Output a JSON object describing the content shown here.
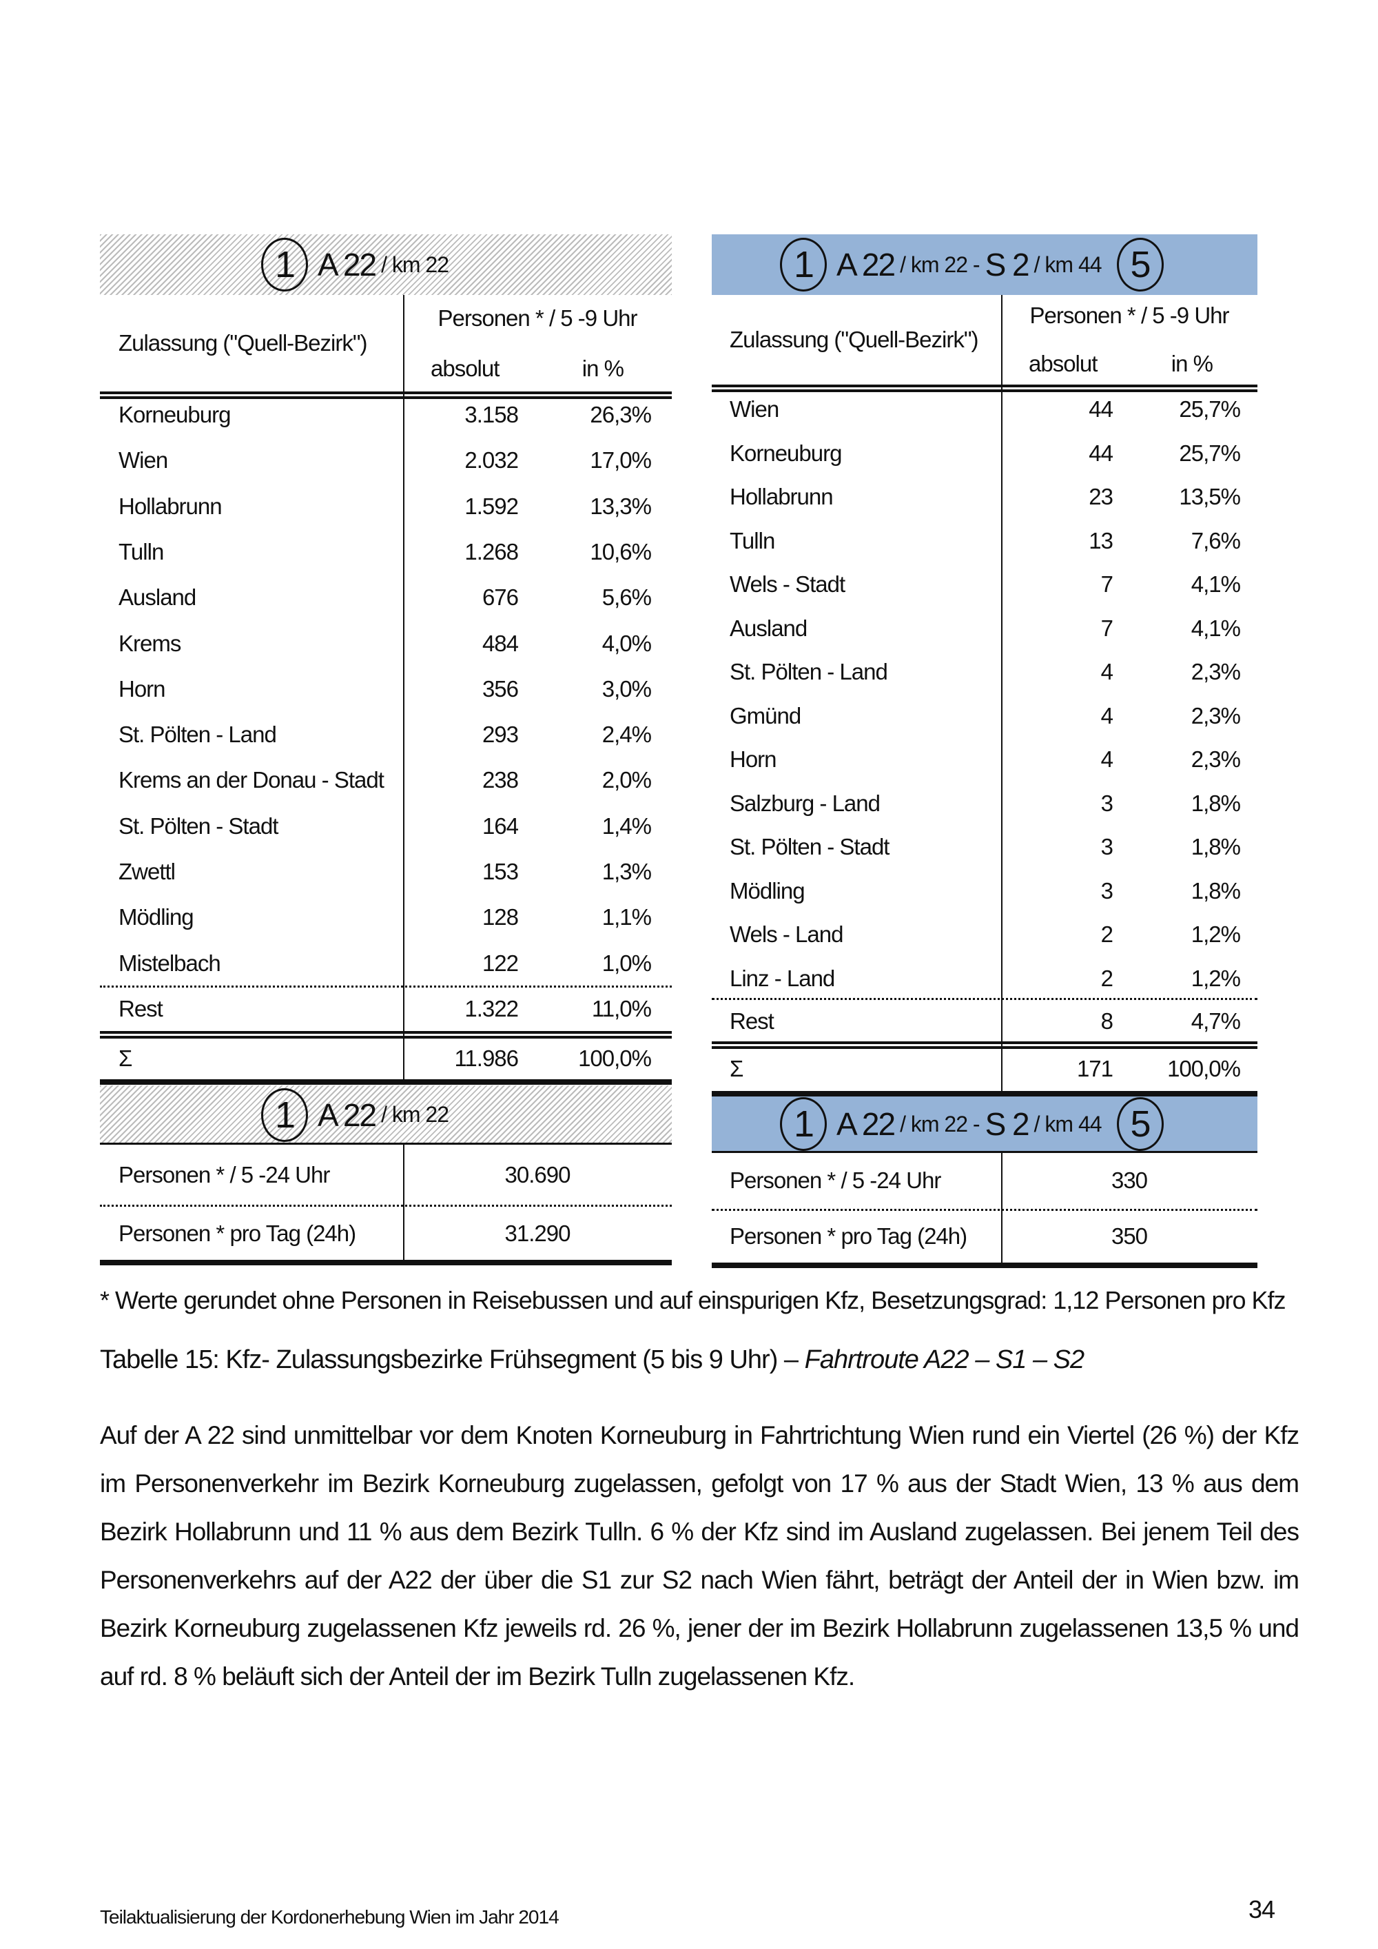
{
  "left_table": {
    "header": {
      "circle_start": "1",
      "road": "A 22",
      "km": "/ km 22"
    },
    "col_zulassung": "Zulassung (\"Quell-Bezirk\")",
    "col_personen": "Personen * / 5 -9 Uhr",
    "col_absolut": "absolut",
    "col_percent": "in %",
    "rows": [
      {
        "name": "Korneuburg",
        "abs": "3.158",
        "pct": "26,3%"
      },
      {
        "name": "Wien",
        "abs": "2.032",
        "pct": "17,0%"
      },
      {
        "name": "Hollabrunn",
        "abs": "1.592",
        "pct": "13,3%"
      },
      {
        "name": "Tulln",
        "abs": "1.268",
        "pct": "10,6%"
      },
      {
        "name": "Ausland",
        "abs": "676",
        "pct": "5,6%"
      },
      {
        "name": "Krems",
        "abs": "484",
        "pct": "4,0%"
      },
      {
        "name": "Horn",
        "abs": "356",
        "pct": "3,0%"
      },
      {
        "name": "St. Pölten - Land",
        "abs": "293",
        "pct": "2,4%"
      },
      {
        "name": "Krems an der Donau - Stadt",
        "abs": "238",
        "pct": "2,0%"
      },
      {
        "name": "St. Pölten - Stadt",
        "abs": "164",
        "pct": "1,4%"
      },
      {
        "name": "Zwettl",
        "abs": "153",
        "pct": "1,3%"
      },
      {
        "name": "Mödling",
        "abs": "128",
        "pct": "1,1%"
      },
      {
        "name": "Mistelbach",
        "abs": "122",
        "pct": "1,0%"
      }
    ],
    "rest": {
      "name": "Rest",
      "abs": "1.322",
      "pct": "11,0%"
    },
    "sum": {
      "name": "Σ",
      "abs": "11.986",
      "pct": "100,0%"
    },
    "footer_header": {
      "circle_start": "1",
      "road": "A 22",
      "km": "/ km 22"
    },
    "totals": [
      {
        "label": "Personen * / 5 -24 Uhr",
        "value": "30.690"
      },
      {
        "label": "Personen * pro Tag (24h)",
        "value": "31.290"
      }
    ]
  },
  "right_table": {
    "header": {
      "circle_start": "1",
      "road": "A 22",
      "km": "/ km 22 -",
      "road2": "S 2",
      "km2": "/ km 44",
      "circle_end": "5"
    },
    "col_zulassung": "Zulassung (\"Quell-Bezirk\")",
    "col_personen": "Personen * / 5 -9 Uhr",
    "col_absolut": "absolut",
    "col_percent": "in %",
    "rows": [
      {
        "name": "Wien",
        "abs": "44",
        "pct": "25,7%"
      },
      {
        "name": "Korneuburg",
        "abs": "44",
        "pct": "25,7%"
      },
      {
        "name": "Hollabrunn",
        "abs": "23",
        "pct": "13,5%"
      },
      {
        "name": "Tulln",
        "abs": "13",
        "pct": "7,6%"
      },
      {
        "name": "Wels - Stadt",
        "abs": "7",
        "pct": "4,1%"
      },
      {
        "name": "Ausland",
        "abs": "7",
        "pct": "4,1%"
      },
      {
        "name": "St. Pölten - Land",
        "abs": "4",
        "pct": "2,3%"
      },
      {
        "name": "Gmünd",
        "abs": "4",
        "pct": "2,3%"
      },
      {
        "name": "Horn",
        "abs": "4",
        "pct": "2,3%"
      },
      {
        "name": "Salzburg - Land",
        "abs": "3",
        "pct": "1,8%"
      },
      {
        "name": "St. Pölten - Stadt",
        "abs": "3",
        "pct": "1,8%"
      },
      {
        "name": "Mödling",
        "abs": "3",
        "pct": "1,8%"
      },
      {
        "name": "Wels - Land",
        "abs": "2",
        "pct": "1,2%"
      },
      {
        "name": "Linz - Land",
        "abs": "2",
        "pct": "1,2%"
      }
    ],
    "rest": {
      "name": "Rest",
      "abs": "8",
      "pct": "4,7%"
    },
    "sum": {
      "name": "Σ",
      "abs": "171",
      "pct": "100,0%"
    },
    "footer_header": {
      "circle_start": "1",
      "road": "A 22",
      "km": "/ km 22 -",
      "road2": "S 2",
      "km2": "/ km 44",
      "circle_end": "5"
    },
    "totals": [
      {
        "label": "Personen * / 5 -24 Uhr",
        "value": "330"
      },
      {
        "label": "Personen * pro Tag (24h)",
        "value": "350"
      }
    ]
  },
  "colors": {
    "blue_header": "#95b3d7",
    "hatch": "#bbbbbb"
  },
  "footnote": "* Werte gerundet ohne Personen in Reisebussen und auf einspurigen Kfz, Besetzungsgrad: 1,12 Personen pro Kfz",
  "caption": {
    "prefix": "Tabelle 15: Kfz- Zulassungsbezirke Frühsegment  (5 bis 9 Uhr) – ",
    "route": "Fahrtroute A22 – S1 – S2"
  },
  "paragraph": "Auf der A 22 sind unmittelbar vor dem Knoten Korneuburg in Fahrtrichtung Wien rund ein Viertel (26 %) der Kfz im Personenverkehr im Bezirk Korneuburg zugelassen, gefolgt von 17 % aus der Stadt Wien, 13 % aus dem Bezirk Hollabrunn und 11 % aus dem Bezirk Tulln. 6 % der Kfz sind im Ausland zugelassen. Bei jenem Teil des Personenverkehrs auf der A22 der über die S1 zur S2 nach Wien fährt, beträgt der Anteil der in Wien bzw. im Bezirk Korneuburg zugelassenen Kfz jeweils rd. 26 %, jener der im Bezirk Hollabrunn zugelassenen 13,5 % und auf rd. 8 % beläuft sich der Anteil der im Bezirk Tulln zugelassenen Kfz.",
  "footer": {
    "text": "Teilaktualisierung der Kordonerhebung Wien im Jahr 2014",
    "page": "34"
  }
}
